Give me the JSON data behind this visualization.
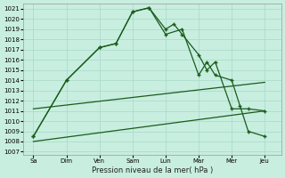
{
  "title": "Pression niveau de la mer( hPa )",
  "bg_color": "#c8eee0",
  "grid_color": "#a8d8c8",
  "line_color": "#1a5c1a",
  "ylim_min": 1007,
  "ylim_max": 1021.5,
  "yticks": [
    1007,
    1008,
    1009,
    1010,
    1011,
    1012,
    1013,
    1014,
    1015,
    1016,
    1017,
    1018,
    1019,
    1020,
    1021
  ],
  "xtick_labels": [
    "Sa",
    "Dim",
    "Ven",
    "Sam",
    "Lun",
    "Mar",
    "Mer",
    "Jeu"
  ],
  "xtick_pos": [
    0,
    1,
    2,
    3,
    4,
    5,
    6,
    7
  ],
  "line1_x": [
    0,
    1,
    2,
    2.5,
    3,
    3.5,
    4,
    4.25,
    4.5,
    5,
    5.25,
    5.5,
    6,
    6.5,
    7
  ],
  "line1_y": [
    1008.5,
    1014.0,
    1017.2,
    1017.6,
    1020.7,
    1021.1,
    1019.0,
    1019.5,
    1018.5,
    1016.5,
    1015.0,
    1015.8,
    1011.2,
    1011.2,
    1011.0
  ],
  "line2_x": [
    0,
    1,
    2,
    2.5,
    3,
    3.5,
    4,
    4.5,
    5,
    5.25,
    5.5,
    6,
    6.25,
    6.5,
    7
  ],
  "line2_y": [
    1008.5,
    1014.0,
    1017.2,
    1017.6,
    1020.7,
    1021.1,
    1018.5,
    1019.0,
    1014.5,
    1015.8,
    1014.5,
    1014.0,
    1011.5,
    1009.0,
    1008.5
  ],
  "line3_x": [
    0,
    7
  ],
  "line3_y": [
    1011.2,
    1013.8
  ],
  "line4_x": [
    0,
    7
  ],
  "line4_y": [
    1008.0,
    1011.0
  ]
}
